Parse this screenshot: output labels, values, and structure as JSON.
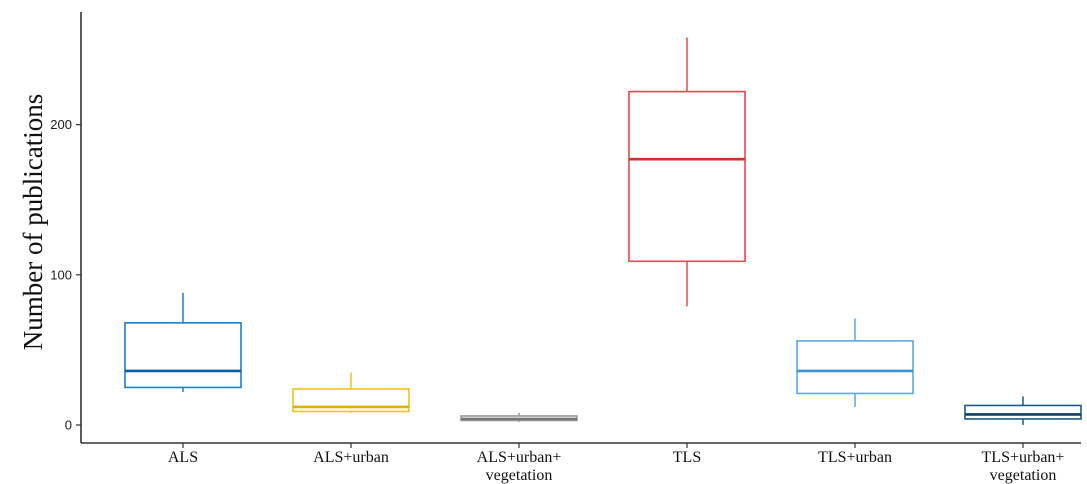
{
  "chart_data": {
    "type": "box",
    "title": "",
    "xlabel": "",
    "ylabel": "Number of publications",
    "ylim": [
      -12,
      275
    ],
    "yticks": [
      0,
      100,
      200
    ],
    "grid": false,
    "categories": [
      {
        "lines": [
          "ALS"
        ]
      },
      {
        "lines": [
          "ALS+urban"
        ]
      },
      {
        "lines": [
          "ALS+urban+",
          "vegetation"
        ]
      },
      {
        "lines": [
          "TLS"
        ]
      },
      {
        "lines": [
          "TLS+urban"
        ]
      },
      {
        "lines": [
          "TLS+urban+",
          "vegetation"
        ]
      }
    ],
    "boxes": [
      {
        "min": 22,
        "q1": 25,
        "median": 36,
        "q3": 68,
        "max": 88,
        "color": "#1f7fc8",
        "median_color": "#0b5cab"
      },
      {
        "min": 8,
        "q1": 9,
        "median": 12,
        "q3": 24,
        "max": 35,
        "color": "#f0c419",
        "median_color": "#e0b000"
      },
      {
        "min": 2,
        "q1": 3,
        "median": 4,
        "q3": 6,
        "max": 8,
        "color": "#999999",
        "median_color": "#777777"
      },
      {
        "min": 79,
        "q1": 109,
        "median": 177,
        "q3": 222,
        "max": 258,
        "color": "#e8474b",
        "median_color": "#dd2a2e"
      },
      {
        "min": 12,
        "q1": 21,
        "median": 36,
        "q3": 56,
        "max": 71,
        "color": "#5aa9e0",
        "median_color": "#3a92d4"
      },
      {
        "min": 0,
        "q1": 4,
        "median": 7,
        "q3": 13,
        "max": 19,
        "color": "#1a5a8c",
        "median_color": "#0e3f66"
      }
    ]
  }
}
